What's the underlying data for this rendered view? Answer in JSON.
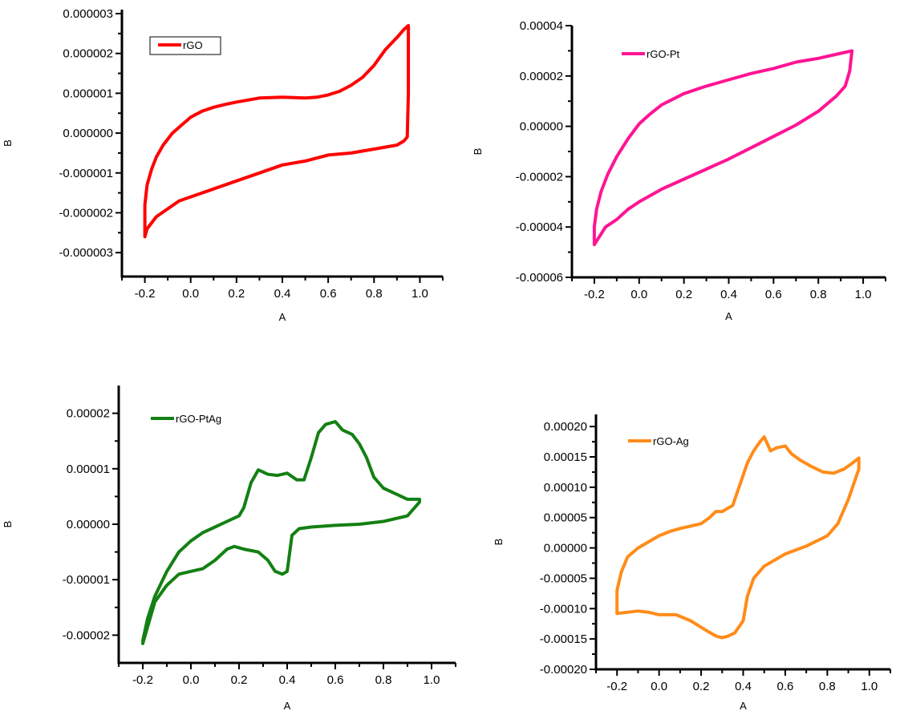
{
  "chart_data": [
    {
      "type": "line",
      "xlabel": "A",
      "ylabel": "B",
      "xlim": [
        -0.3,
        1.1
      ],
      "ylim": [
        -3.6e-06,
        3.1e-06
      ],
      "xticks": [
        -0.2,
        0.0,
        0.2,
        0.4,
        0.6,
        0.8,
        1.0
      ],
      "xtick_labels": [
        "-0.2",
        "0.0",
        "0.2",
        "0.4",
        "0.6",
        "0.8",
        "1.0"
      ],
      "yticks": [
        3e-06,
        2e-06,
        1e-06,
        0.0,
        -1e-06,
        -2e-06,
        -3e-06
      ],
      "ytick_labels": [
        "0.000003",
        "0.000002",
        "0.000001",
        "0.000000",
        "-0.000001",
        "-0.000002",
        "-0.000003"
      ],
      "legend": {
        "placement": "top-left",
        "boxed": true
      },
      "series": [
        {
          "name": "rGO",
          "color": "#ff0000",
          "x": [
            -0.2,
            -0.19,
            -0.17,
            -0.15,
            -0.12,
            -0.08,
            -0.04,
            0.0,
            0.05,
            0.1,
            0.15,
            0.2,
            0.3,
            0.4,
            0.5,
            0.55,
            0.6,
            0.65,
            0.7,
            0.75,
            0.8,
            0.85,
            0.9,
            0.93,
            0.95,
            0.95,
            0.945,
            0.93,
            0.9,
            0.85,
            0.8,
            0.7,
            0.6,
            0.5,
            0.4,
            0.3,
            0.2,
            0.1,
            0.0,
            -0.05,
            -0.1,
            -0.15,
            -0.19,
            -0.2,
            -0.2
          ],
          "y": [
            -1.8e-06,
            -1.3e-06,
            -9e-07,
            -6e-07,
            -3e-07,
            0.0,
            2e-07,
            4e-07,
            5.5e-07,
            6.5e-07,
            7.2e-07,
            7.8e-07,
            8.8e-07,
            9e-07,
            8.8e-07,
            9e-07,
            9.6e-07,
            1.05e-06,
            1.2e-06,
            1.4e-06,
            1.7e-06,
            2.1e-06,
            2.4e-06,
            2.6e-06,
            2.7e-06,
            1e-06,
            -1e-07,
            -2e-07,
            -3e-07,
            -3.5e-07,
            -4e-07,
            -5e-07,
            -5.5e-07,
            -7e-07,
            -8e-07,
            -1e-06,
            -1.2e-06,
            -1.4e-06,
            -1.6e-06,
            -1.7e-06,
            -1.9e-06,
            -2.1e-06,
            -2.4e-06,
            -2.6e-06,
            -1.8e-06
          ]
        }
      ]
    },
    {
      "type": "line",
      "xlabel": "A",
      "ylabel": "B",
      "xlim": [
        -0.3,
        1.1
      ],
      "ylim": [
        -6e-05,
        4e-05
      ],
      "xticks": [
        -0.2,
        0.0,
        0.2,
        0.4,
        0.6,
        0.8,
        1.0
      ],
      "xtick_labels": [
        "-0.2",
        "0.0",
        "0.2",
        "0.4",
        "0.6",
        "0.8",
        "1.0"
      ],
      "yticks": [
        4e-05,
        2e-05,
        0.0,
        -2e-05,
        -4e-05,
        -6e-05
      ],
      "ytick_labels": [
        "0.00004",
        "0.00002",
        "0.00000",
        "-0.00002",
        "-0.00004",
        "-0.00006"
      ],
      "legend": {
        "placement": "top-left",
        "boxed": false
      },
      "series": [
        {
          "name": "rGO-Pt",
          "color": "#ff1493",
          "x": [
            -0.2,
            -0.19,
            -0.17,
            -0.14,
            -0.1,
            -0.05,
            0.0,
            0.05,
            0.1,
            0.2,
            0.3,
            0.4,
            0.5,
            0.6,
            0.7,
            0.8,
            0.9,
            0.95,
            0.94,
            0.92,
            0.88,
            0.8,
            0.7,
            0.6,
            0.5,
            0.4,
            0.3,
            0.2,
            0.1,
            0.0,
            -0.05,
            -0.1,
            -0.15,
            -0.2,
            -0.2
          ],
          "y": [
            -4e-05,
            -3.3e-05,
            -2.6e-05,
            -1.9e-05,
            -1.2e-05,
            -5e-06,
            1e-06,
            5e-06,
            8.5e-06,
            1.3e-05,
            1.6e-05,
            1.85e-05,
            2.1e-05,
            2.3e-05,
            2.55e-05,
            2.7e-05,
            2.9e-05,
            3e-05,
            2.2e-05,
            1.6e-05,
            1.2e-05,
            6e-06,
            5e-07,
            -4e-06,
            -8.5e-06,
            -1.3e-05,
            -1.7e-05,
            -2.1e-05,
            -2.5e-05,
            -3e-05,
            -3.3e-05,
            -3.7e-05,
            -4e-05,
            -4.7e-05,
            -4e-05
          ]
        }
      ]
    },
    {
      "type": "line",
      "xlabel": "A",
      "ylabel": "B",
      "xlim": [
        -0.3,
        1.1
      ],
      "ylim": [
        -2.5e-05,
        2.5e-05
      ],
      "xticks": [
        -0.2,
        0.0,
        0.2,
        0.4,
        0.6,
        0.8,
        1.0
      ],
      "xtick_labels": [
        "-0.2",
        "0.0",
        "0.2",
        "0.4",
        "0.6",
        "0.8",
        "1.0"
      ],
      "yticks": [
        2e-05,
        1e-05,
        0.0,
        -1e-05,
        -2e-05
      ],
      "ytick_labels": [
        "0.00002",
        "0.00001",
        "0.00000",
        "-0.00001",
        "-0.00002"
      ],
      "legend": {
        "placement": "top-left",
        "boxed": false
      },
      "series": [
        {
          "name": "rGO-PtAg",
          "color": "#138013",
          "x": [
            -0.2,
            -0.18,
            -0.15,
            -0.1,
            -0.05,
            0.0,
            0.05,
            0.1,
            0.15,
            0.2,
            0.22,
            0.25,
            0.28,
            0.32,
            0.36,
            0.4,
            0.44,
            0.47,
            0.5,
            0.53,
            0.56,
            0.6,
            0.63,
            0.67,
            0.7,
            0.73,
            0.76,
            0.8,
            0.85,
            0.9,
            0.95,
            0.95,
            0.9,
            0.8,
            0.7,
            0.6,
            0.5,
            0.45,
            0.42,
            0.4,
            0.38,
            0.35,
            0.32,
            0.28,
            0.22,
            0.18,
            0.15,
            0.1,
            0.05,
            0.0,
            -0.05,
            -0.1,
            -0.15,
            -0.2
          ],
          "y": [
            -2.1e-05,
            -1.7e-05,
            -1.3e-05,
            -8.5e-06,
            -5e-06,
            -3e-06,
            -1.5e-06,
            -5e-07,
            5e-07,
            1.5e-06,
            3e-06,
            7.5e-06,
            9.8e-06,
            9e-06,
            8.8e-06,
            9.2e-06,
            8e-06,
            8e-06,
            1.2e-05,
            1.65e-05,
            1.8e-05,
            1.85e-05,
            1.7e-05,
            1.62e-05,
            1.45e-05,
            1.2e-05,
            8.5e-06,
            6.5e-06,
            5.5e-06,
            4.5e-06,
            4.5e-06,
            4e-06,
            1.5e-06,
            5e-07,
            0.0,
            -2e-07,
            -5e-07,
            -8e-07,
            -2e-06,
            -8.5e-06,
            -9e-06,
            -8.5e-06,
            -6.5e-06,
            -5e-06,
            -4.5e-06,
            -4e-06,
            -4.5e-06,
            -6.5e-06,
            -8e-06,
            -8.5e-06,
            -9e-06,
            -1.1e-05,
            -1.4e-05,
            -2.15e-05
          ]
        }
      ]
    },
    {
      "type": "line",
      "xlabel": "A",
      "ylabel": "B",
      "xlim": [
        -0.3,
        1.1
      ],
      "ylim": [
        -0.0002,
        0.00022
      ],
      "xticks": [
        -0.2,
        0.0,
        0.2,
        0.4,
        0.6,
        0.8,
        1.0
      ],
      "xtick_labels": [
        "-0.2",
        "0.0",
        "0.2",
        "0.4",
        "0.6",
        "0.8",
        "1.0"
      ],
      "yticks": [
        0.0002,
        0.00015,
        0.0001,
        5e-05,
        0.0,
        -5e-05,
        -0.0001,
        -0.00015,
        -0.0002
      ],
      "ytick_labels": [
        "0.00020",
        "0.00015",
        "0.00010",
        "0.00005",
        "0.00000",
        "-0.00005",
        "-0.00010",
        "-0.00015",
        "-0.00020"
      ],
      "legend": {
        "placement": "top-left",
        "boxed": false
      },
      "series": [
        {
          "name": "rGO-Ag",
          "color": "#ff8c1a",
          "x": [
            -0.2,
            -0.18,
            -0.15,
            -0.1,
            -0.05,
            0.0,
            0.05,
            0.1,
            0.15,
            0.2,
            0.24,
            0.27,
            0.3,
            0.35,
            0.38,
            0.42,
            0.45,
            0.48,
            0.5,
            0.53,
            0.56,
            0.6,
            0.63,
            0.67,
            0.72,
            0.78,
            0.83,
            0.88,
            0.92,
            0.95,
            0.95,
            0.9,
            0.85,
            0.8,
            0.7,
            0.6,
            0.5,
            0.45,
            0.42,
            0.4,
            0.38,
            0.36,
            0.33,
            0.3,
            0.27,
            0.22,
            0.15,
            0.08,
            0.0,
            -0.05,
            -0.1,
            -0.15,
            -0.2,
            -0.2
          ],
          "y": [
            -7e-05,
            -4e-05,
            -1.5e-05,
            0.0,
            1e-05,
            2e-05,
            2.7e-05,
            3.2e-05,
            3.6e-05,
            4e-05,
            5e-05,
            6e-05,
            6e-05,
            7e-05,
            0.0001,
            0.00014,
            0.00016,
            0.000175,
            0.000183,
            0.00016,
            0.000165,
            0.000168,
            0.000155,
            0.000145,
            0.000135,
            0.000125,
            0.000123,
            0.00013,
            0.00014,
            0.000148,
            0.00013,
            8e-05,
            4e-05,
            2e-05,
            3e-06,
            -1e-05,
            -3e-05,
            -5e-05,
            -8e-05,
            -0.00012,
            -0.00013,
            -0.00014,
            -0.000145,
            -0.000148,
            -0.000145,
            -0.000135,
            -0.00012,
            -0.00011,
            -0.00011,
            -0.000106,
            -0.000104,
            -0.000106,
            -0.000108,
            -7e-05
          ]
        }
      ]
    }
  ]
}
